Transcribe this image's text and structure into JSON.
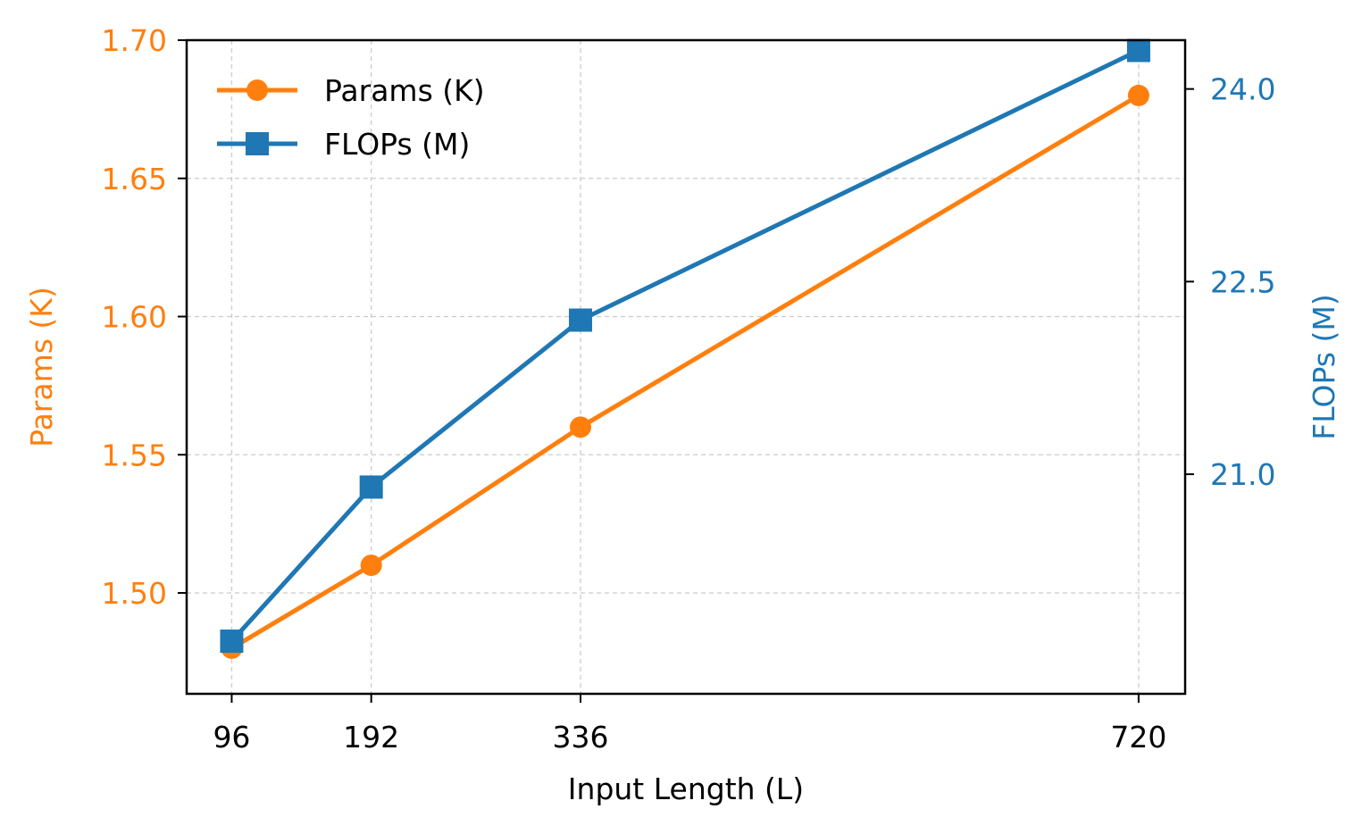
{
  "chart_data": {
    "type": "line",
    "x": [
      96,
      192,
      336,
      720
    ],
    "xlabel": "Input Length (L)",
    "x_ticks": [
      "96",
      "192",
      "336",
      "720"
    ],
    "xlim": [
      65,
      752
    ],
    "grid": true,
    "legend_position": "upper-left",
    "series": [
      {
        "name": "Params (K)",
        "axis": "left",
        "marker": "circle",
        "color": "#ff7f0e",
        "values": [
          1.48,
          1.51,
          1.56,
          1.68
        ]
      },
      {
        "name": "FLOPs (M)",
        "axis": "right",
        "marker": "square",
        "color": "#1f77b4",
        "values": [
          19.7,
          20.9,
          22.2,
          24.3
        ]
      }
    ],
    "left_axis": {
      "label": "Params (K)",
      "color": "#ff7f0e",
      "ylim": [
        1.4635,
        1.7
      ],
      "ticks": [
        1.5,
        1.55,
        1.6,
        1.65,
        1.7
      ],
      "tick_labels": [
        "1.50",
        "1.55",
        "1.60",
        "1.65",
        "1.70"
      ]
    },
    "right_axis": {
      "label": "FLOPs (M)",
      "color": "#1f77b4",
      "ylim": [
        19.29,
        24.38
      ],
      "ticks": [
        21.0,
        22.5,
        24.0
      ],
      "tick_labels": [
        "21.0",
        "22.5",
        "24.0"
      ]
    }
  }
}
